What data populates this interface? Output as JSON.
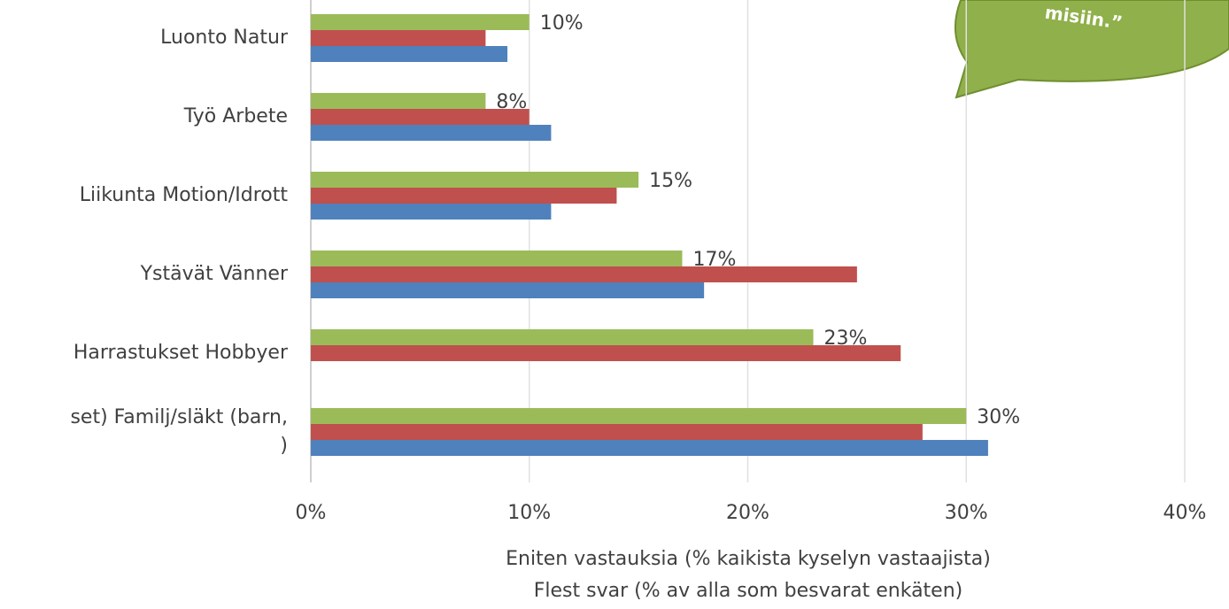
{
  "chart_data": {
    "type": "bar",
    "orientation": "horizontal",
    "categories": [
      "Luonto Natur",
      "Työ Arbete",
      "Liikunta Motion/Idrott",
      "Ystävät Vänner",
      "Harrastukset Hobbyer",
      "set) Familj/släkt (barn,\n)"
    ],
    "series": [
      {
        "color": "#9bbb59",
        "values": [
          10,
          8,
          15,
          17,
          23,
          30
        ],
        "value_labels": [
          "10%",
          "8%",
          "15%",
          "17%",
          "23%",
          "30%"
        ]
      },
      {
        "color": "#c0504d",
        "values": [
          8,
          10,
          14,
          25,
          27,
          28
        ]
      },
      {
        "color": "#4f81bd",
        "values": [
          9,
          11,
          11,
          18,
          null,
          31
        ]
      }
    ],
    "xlim": [
      0,
      40
    ],
    "xticks": [
      {
        "value": 0,
        "label": "0%"
      },
      {
        "value": 10,
        "label": "10%"
      },
      {
        "value": 20,
        "label": "20%"
      },
      {
        "value": 30,
        "label": "30%"
      },
      {
        "value": 40,
        "label": "40%"
      }
    ],
    "xlabel": [
      "Eniten vastauksia (% kaikista kyselyn vastaajista)",
      "Flest svar (% av alla som besvarat enkäten)"
    ],
    "grid": true,
    "annotation": "misiin.”"
  }
}
